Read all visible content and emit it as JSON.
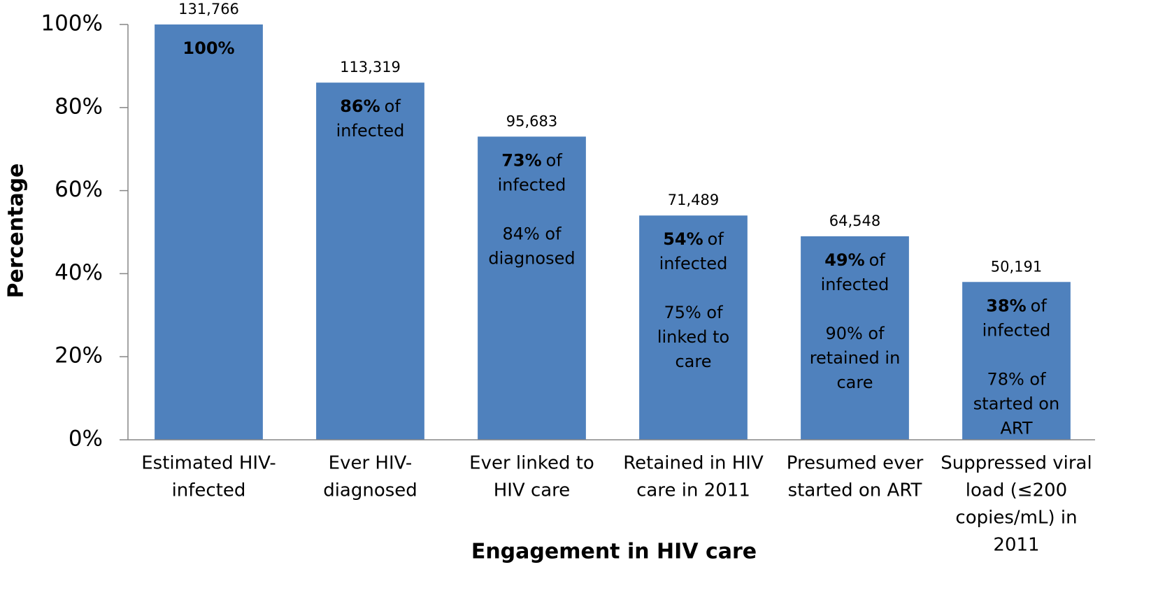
{
  "chart_data": {
    "type": "bar",
    "ylabel": "Percentage",
    "xlabel": "Engagement in HIV care",
    "categories": [
      [
        "Estimated HIV-",
        "infected"
      ],
      [
        "Ever HIV-",
        "diagnosed"
      ],
      [
        "Ever linked to",
        "HIV care"
      ],
      [
        "Retained in HIV",
        "care in 2011"
      ],
      [
        "Presumed ever",
        "started on ART"
      ],
      [
        "Suppressed viral",
        "load (≤200",
        "copies/mL) in",
        "2011"
      ]
    ],
    "values": [
      100,
      86,
      73,
      54,
      49,
      38
    ],
    "value_labels": [
      "100%",
      "86%",
      "73%",
      "54%",
      "49%",
      "38%"
    ],
    "count_labels": [
      "131,766",
      "113,319",
      "95,683",
      "71,489",
      "64,548",
      "50,191"
    ],
    "primary_lines": [
      [],
      [
        "of",
        "infected"
      ],
      [
        "of",
        "infected"
      ],
      [
        "of",
        "infected"
      ],
      [
        "of",
        "infected"
      ],
      [
        "of",
        "infected"
      ]
    ],
    "secondary_lines": [
      [],
      [],
      [
        "84% of",
        "diagnosed"
      ],
      [
        "75% of",
        "linked to",
        "care"
      ],
      [
        "90% of",
        "retained in",
        "care"
      ],
      [
        "78% of",
        "started on",
        "ART"
      ]
    ],
    "color": "#4f81bd",
    "ylim": [
      0,
      100
    ],
    "yticks": [
      {
        "value": 0,
        "label": "0%"
      },
      {
        "value": 20,
        "label": "20%"
      },
      {
        "value": 40,
        "label": "40%"
      },
      {
        "value": 60,
        "label": "60%"
      },
      {
        "value": 80,
        "label": "80%"
      },
      {
        "value": 100,
        "label": "100%"
      }
    ],
    "grid": false
  }
}
